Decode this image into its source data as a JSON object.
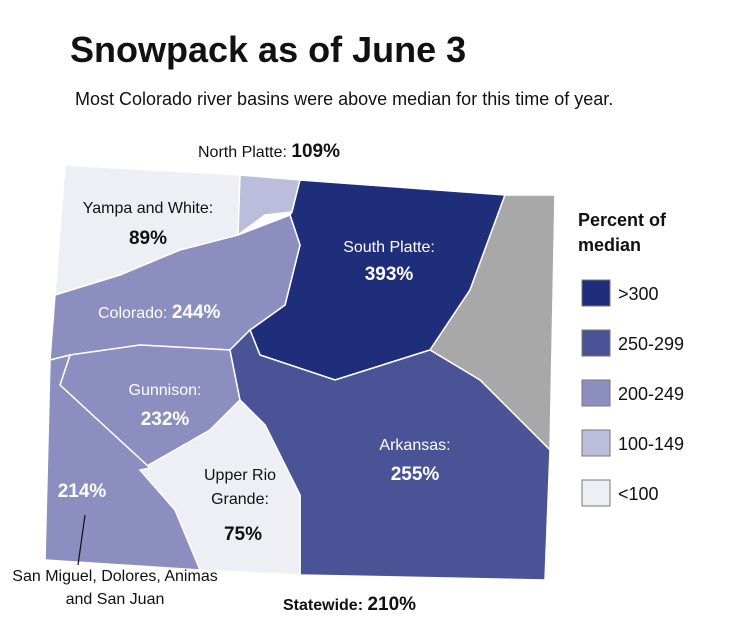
{
  "header": {
    "title": "Snowpack as of June 3",
    "subtitle": "Most Colorado river basins were above median for this time of year."
  },
  "regions": [
    {
      "name": "North Platte:",
      "value": "109%"
    },
    {
      "name": "Yampa and White:",
      "value": "89%"
    },
    {
      "name": "South Platte:",
      "value": "393%"
    },
    {
      "name": "Colorado:",
      "value": "244%"
    },
    {
      "name": "Gunnison:",
      "value": "232%"
    },
    {
      "name": "Arkansas:",
      "value": "255%"
    },
    {
      "name": "Upper Rio Grande:",
      "value": "75%"
    },
    {
      "name": "San Miguel, Dolores, Animas and San Juan",
      "value": "214%"
    }
  ],
  "statewide": {
    "name": "Statewide:",
    "value": "210%"
  },
  "legend": {
    "title": "Percent of median",
    "entries": [
      ">300",
      "250-299",
      "200-249",
      "100-149",
      "<100"
    ]
  }
}
